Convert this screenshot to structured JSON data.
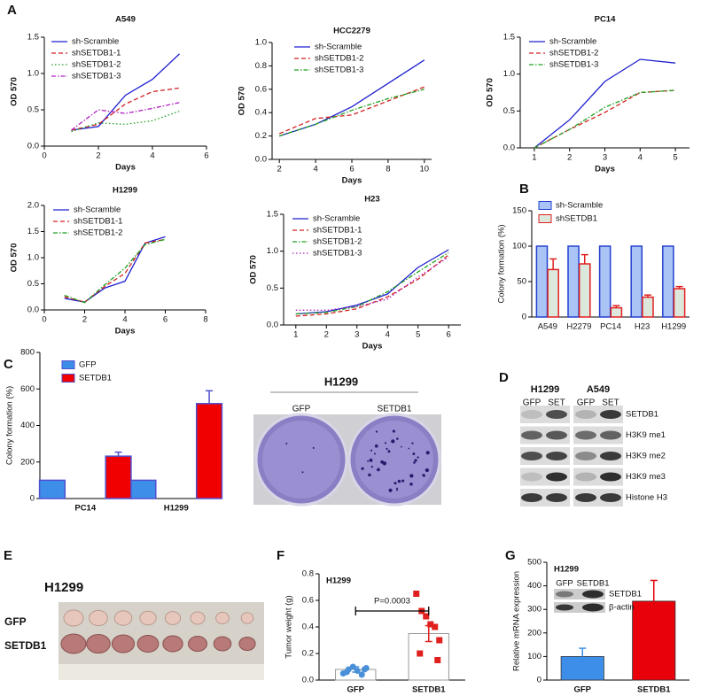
{
  "panel_labels": [
    "A",
    "B",
    "C",
    "D",
    "E",
    "F",
    "G"
  ],
  "chart_data": [
    {
      "type": "line",
      "title": "A549",
      "xlabel": "Days",
      "ylabel": "OD 570",
      "x": [
        1,
        2,
        3,
        4,
        5
      ],
      "xlim": [
        0,
        6
      ],
      "xticks": [
        0,
        2,
        4,
        6
      ],
      "ylim": [
        0,
        1.5
      ],
      "yticks": [
        {
          "value": 0,
          "label": "0.0"
        },
        0.5,
        {
          "value": 1,
          "label": "1.0"
        },
        1.5
      ],
      "legend": "upper left",
      "series": [
        {
          "name": "sh-Scramble",
          "color": "#1f1fd0",
          "style": "solid",
          "values": [
            0.22,
            0.27,
            0.7,
            0.92,
            1.27
          ]
        },
        {
          "name": "shSETDB1-1",
          "color": "#d42020",
          "style": "dashed",
          "values": [
            0.22,
            0.3,
            0.58,
            0.75,
            0.8
          ]
        },
        {
          "name": "shSETDB1-2",
          "color": "#20a020",
          "style": "dotted",
          "values": [
            0.2,
            0.32,
            0.3,
            0.35,
            0.48
          ]
        },
        {
          "name": "shSETDB1-3",
          "color": "#b020c0",
          "style": "dashdot",
          "values": [
            0.22,
            0.5,
            0.45,
            0.52,
            0.6
          ]
        }
      ]
    },
    {
      "type": "line",
      "title": "HCC2279",
      "xlabel": "Days",
      "ylabel": "OD 570",
      "x": [
        2,
        4,
        6,
        8,
        10
      ],
      "xlim": [
        1.6,
        10.4
      ],
      "xticks": [
        2,
        4,
        6,
        8,
        10
      ],
      "ylim": [
        0,
        1
      ],
      "yticks": [
        {
          "value": 0,
          "label": "0.0"
        },
        0.2,
        0.4,
        0.6,
        0.8,
        {
          "value": 1,
          "label": "1.0"
        }
      ],
      "legend": "upper left",
      "series": [
        {
          "name": "sh-Scramble",
          "color": "#1f1fd0",
          "style": "solid",
          "values": [
            0.2,
            0.3,
            0.45,
            0.65,
            0.85
          ]
        },
        {
          "name": "shSETDB1-2",
          "color": "#d42020",
          "style": "dashed",
          "values": [
            0.22,
            0.35,
            0.38,
            0.5,
            0.62
          ]
        },
        {
          "name": "shSETDB1-3",
          "color": "#20a020",
          "style": "dashdot",
          "values": [
            0.2,
            0.3,
            0.42,
            0.52,
            0.6
          ]
        }
      ]
    },
    {
      "type": "line",
      "title": "PC14",
      "xlabel": "Days",
      "ylabel": "OD 570",
      "x": [
        1,
        2,
        3,
        4,
        5
      ],
      "xlim": [
        0.6,
        5.4
      ],
      "xticks": [
        1,
        2,
        3,
        4,
        5
      ],
      "ylim": [
        0,
        1.5
      ],
      "yticks": [
        {
          "value": 0,
          "label": "0.0"
        },
        0.5,
        {
          "value": 1,
          "label": "1.0"
        },
        1.5
      ],
      "legend": "upper left",
      "series": [
        {
          "name": "sh-Scramble",
          "color": "#1f1fd0",
          "style": "solid",
          "values": [
            0,
            0.38,
            0.9,
            1.2,
            1.15
          ]
        },
        {
          "name": "shSETDB1-2",
          "color": "#d42020",
          "style": "dashed",
          "values": [
            0,
            0.25,
            0.48,
            0.75,
            0.78
          ]
        },
        {
          "name": "shSETDB1-3",
          "color": "#20a020",
          "style": "dashdot",
          "values": [
            0,
            0.25,
            0.55,
            0.75,
            0.78
          ]
        }
      ]
    },
    {
      "type": "line",
      "title": "H1299",
      "xlabel": "Days",
      "ylabel": "OD 570",
      "x": [
        1,
        2,
        3,
        4,
        5,
        6
      ],
      "xlim": [
        0,
        8
      ],
      "xticks": [
        0,
        2,
        4,
        6,
        8
      ],
      "ylim": [
        0,
        2
      ],
      "yticks": [
        {
          "value": 0,
          "label": "0.0"
        },
        0.5,
        {
          "value": 1,
          "label": "1.0"
        },
        1.5,
        {
          "value": 2,
          "label": "2.0"
        }
      ],
      "legend": "upper left",
      "series": [
        {
          "name": "sh-Scramble",
          "color": "#1f1fd0",
          "style": "solid",
          "values": [
            0.22,
            0.15,
            0.42,
            0.55,
            1.28,
            1.4
          ]
        },
        {
          "name": "shSETDB1-1",
          "color": "#d42020",
          "style": "dashed",
          "values": [
            0.25,
            0.15,
            0.45,
            0.7,
            1.28,
            1.35
          ]
        },
        {
          "name": "shSETDB1-2",
          "color": "#20a020",
          "style": "dashdot",
          "values": [
            0.28,
            0.14,
            0.48,
            0.8,
            1.25,
            1.35
          ]
        }
      ]
    },
    {
      "type": "line",
      "title": "H23",
      "xlabel": "Days",
      "ylabel": "OD 570",
      "x": [
        1,
        2,
        3,
        4,
        5,
        6
      ],
      "xlim": [
        0.6,
        6.4
      ],
      "xticks": [
        1,
        2,
        3,
        4,
        5,
        6
      ],
      "ylim": [
        0,
        1.5
      ],
      "yticks": [
        {
          "value": 0,
          "label": "0.0"
        },
        0.5,
        {
          "value": 1,
          "label": "1.0"
        },
        1.5
      ],
      "legend": "upper left",
      "series": [
        {
          "name": "sh-Scramble",
          "color": "#1f1fd0",
          "style": "solid",
          "values": [
            0.15,
            0.18,
            0.27,
            0.42,
            0.78,
            1.02
          ]
        },
        {
          "name": "shSETDB1-1",
          "color": "#d42020",
          "style": "dashed",
          "values": [
            0.12,
            0.15,
            0.22,
            0.38,
            0.62,
            0.95
          ]
        },
        {
          "name": "shSETDB1-2",
          "color": "#20a020",
          "style": "dashdot",
          "values": [
            0.15,
            0.17,
            0.25,
            0.45,
            0.72,
            0.98
          ]
        },
        {
          "name": "shSETDB1-3",
          "color": "#b020c0",
          "style": "dotted",
          "values": [
            0.2,
            0.2,
            0.25,
            0.35,
            0.65,
            0.92
          ]
        }
      ]
    },
    {
      "type": "bar",
      "ylabel": "Colony formation (%)",
      "categories": [
        "A549",
        "H2279",
        "PC14",
        "H23",
        "H1299"
      ],
      "ylim": [
        0,
        150
      ],
      "yticks": [
        0,
        50,
        100,
        150
      ],
      "legend": "top",
      "series": [
        {
          "name": "sh-Scramble",
          "color": "#a9c4f5",
          "edge": "#2340d0",
          "values": [
            100,
            100,
            100,
            100,
            100
          ]
        },
        {
          "name": "shSETDB1",
          "color": "#dde8dc",
          "edge": "#e02020",
          "values": [
            67,
            75,
            13,
            28,
            40
          ],
          "errors": [
            15,
            13,
            3,
            3,
            3
          ]
        }
      ]
    },
    {
      "type": "bar",
      "ylabel": "Colony formation (%)",
      "categories": [
        "PC14",
        "H1299"
      ],
      "ylim": [
        0,
        800
      ],
      "yticks": [
        0,
        200,
        400,
        600,
        800
      ],
      "legend": "upper left",
      "series": [
        {
          "name": "GFP",
          "color": "#3d8ee8",
          "edge": "#5050d0",
          "values": [
            100,
            100
          ]
        },
        {
          "name": "SETDB1",
          "color": "#f00000",
          "edge": "#5050d0",
          "values": [
            232,
            520
          ],
          "errors": [
            22,
            70
          ]
        }
      ]
    },
    {
      "type": "strip",
      "title": "H1299",
      "ylabel": "Tumor weight (g)",
      "categories": [
        "GFP",
        "SETDB1"
      ],
      "values": [
        0.08,
        0.35
      ],
      "errors": [
        0.02,
        0.06
      ],
      "points": [
        [
          0.05,
          0.08,
          0.1,
          0.07,
          0.04,
          0.09,
          0.06,
          0.08
        ],
        [
          0.65,
          0.52,
          0.48,
          0.42,
          0.4,
          0.3,
          0.2,
          0.15
        ]
      ],
      "colors": [
        "#4a90d9",
        "#e0201e"
      ],
      "annotation": "P=0.0003",
      "ylim": [
        0,
        0.8
      ],
      "yticks": [
        {
          "value": 0,
          "label": "0.0"
        },
        0.2,
        0.4,
        0.6,
        0.8
      ]
    },
    {
      "type": "bar",
      "title": "H1299",
      "ylabel": "Relative mRNA expression",
      "categories": [
        "GFP",
        "SETDB1"
      ],
      "values": [
        100,
        335
      ],
      "errors": [
        35,
        88
      ],
      "colors": [
        "#3d8ee8",
        "#e8000b"
      ],
      "ylim": [
        0,
        500
      ],
      "yticks": [
        0,
        100,
        200,
        300,
        400,
        500
      ],
      "inset": {
        "lanes": [
          "GFP",
          "SETDB1"
        ],
        "bands": [
          "SETDB1",
          "β-actin"
        ]
      }
    }
  ],
  "colony_image": {
    "title": "H1299",
    "lanes": [
      "GFP",
      "SETDB1"
    ]
  },
  "western_blot": {
    "cell_lines": [
      "H1299",
      "A549"
    ],
    "lanes": [
      "GFP",
      "SET",
      "GFP",
      "SET"
    ],
    "rows": [
      "SETDB1",
      "H3K9 me1",
      "H3K9 me2",
      "H3K9 me3",
      "Histone H3"
    ]
  },
  "tumor_image": {
    "title": "H1299",
    "rows": [
      "GFP",
      "SETDB1"
    ]
  }
}
